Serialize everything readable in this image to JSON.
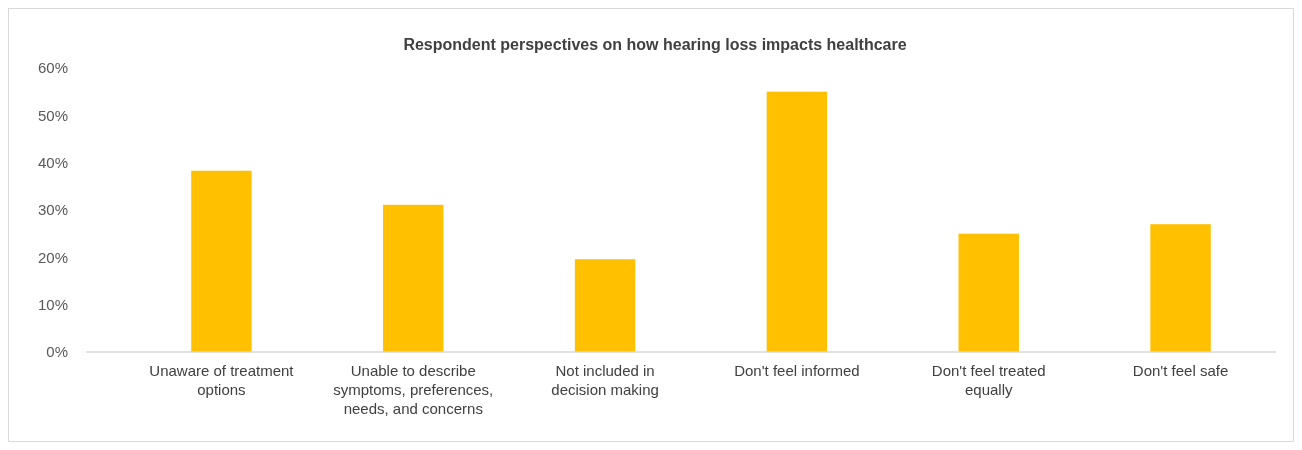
{
  "chart_data": {
    "type": "bar",
    "title": "Respondent perspectives on how hearing loss impacts healthcare",
    "categories": [
      "Unaware of treatment options",
      "Unable to describe symptoms, preferences, needs, and concerns",
      "Not included in decision making",
      "Don't feel informed",
      "Don't feel treated equally",
      "Don't feel safe"
    ],
    "values": [
      38.3,
      31.1,
      19.6,
      55,
      25,
      27
    ],
    "color": "#ffc000",
    "ylim": [
      0,
      60
    ],
    "yticks": [
      {
        "value": 0,
        "label": "0%"
      },
      {
        "value": 10,
        "label": "10%"
      },
      {
        "value": 20,
        "label": "20%"
      },
      {
        "value": 30,
        "label": "30%"
      },
      {
        "value": 40,
        "label": "40%"
      },
      {
        "value": 50,
        "label": "50%"
      },
      {
        "value": 60,
        "label": "60%"
      }
    ]
  }
}
